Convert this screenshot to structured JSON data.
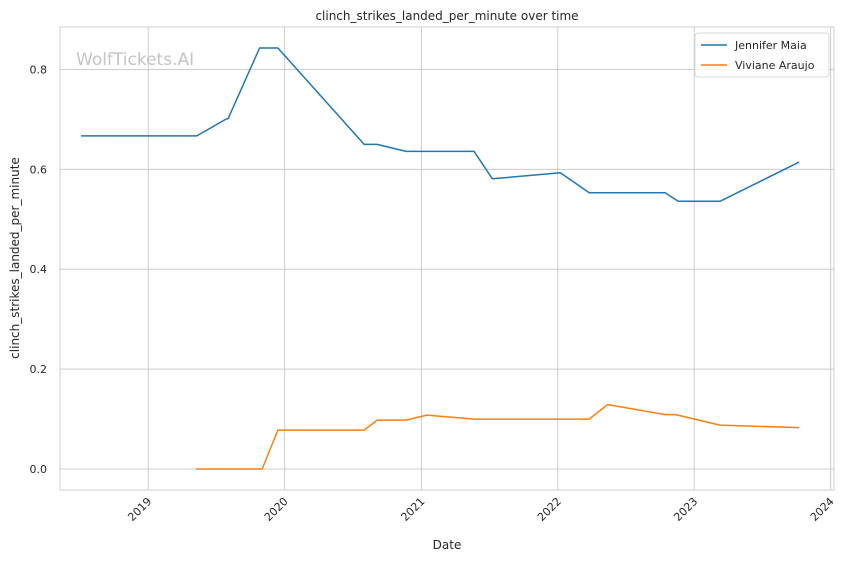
{
  "chart_data": {
    "type": "line",
    "title": "clinch_strikes_landed_per_minute over time",
    "xlabel": "Date",
    "ylabel": "clinch_strikes_landed_per_minute",
    "watermark": "WolfTickets.AI",
    "xlim": [
      "2018-05-10",
      "2024-01-10"
    ],
    "ylim": [
      -0.042,
      0.885
    ],
    "x_ticks": [
      {
        "label": "2019",
        "date": "2019-01-01"
      },
      {
        "label": "2020",
        "date": "2020-01-01"
      },
      {
        "label": "2021",
        "date": "2021-01-01"
      },
      {
        "label": "2022",
        "date": "2022-01-01"
      },
      {
        "label": "2023",
        "date": "2023-01-01"
      },
      {
        "label": "2024",
        "date": "2024-01-01"
      }
    ],
    "y_ticks": [
      {
        "label": "0.0",
        "value": 0.0
      },
      {
        "label": "0.2",
        "value": 0.2
      },
      {
        "label": "0.4",
        "value": 0.4
      },
      {
        "label": "0.6",
        "value": 0.6
      },
      {
        "label": "0.8",
        "value": 0.8
      }
    ],
    "grid": true,
    "legend_position": "top-right",
    "series": [
      {
        "name": "Jennifer Maia",
        "color": "#1f77b4",
        "points": [
          {
            "x": "2018-07-07",
            "y": 0.667
          },
          {
            "x": "2019-05-11",
            "y": 0.667
          },
          {
            "x": "2019-07-27",
            "y": 0.7
          },
          {
            "x": "2019-08-03",
            "y": 0.702
          },
          {
            "x": "2019-10-26",
            "y": 0.843
          },
          {
            "x": "2019-12-14",
            "y": 0.843
          },
          {
            "x": "2020-08-01",
            "y": 0.65
          },
          {
            "x": "2020-09-05",
            "y": 0.65
          },
          {
            "x": "2020-11-21",
            "y": 0.636
          },
          {
            "x": "2021-05-22",
            "y": 0.636
          },
          {
            "x": "2021-07-10",
            "y": 0.581
          },
          {
            "x": "2022-01-08",
            "y": 0.593
          },
          {
            "x": "2022-03-26",
            "y": 0.553
          },
          {
            "x": "2022-10-15",
            "y": 0.553
          },
          {
            "x": "2022-11-19",
            "y": 0.536
          },
          {
            "x": "2023-03-11",
            "y": 0.536
          },
          {
            "x": "2023-10-07",
            "y": 0.614
          }
        ]
      },
      {
        "name": "Viviane Araujo",
        "color": "#ff7f0e",
        "points": [
          {
            "x": "2019-05-11",
            "y": 0.0
          },
          {
            "x": "2019-11-02",
            "y": 0.0
          },
          {
            "x": "2019-12-14",
            "y": 0.078
          },
          {
            "x": "2020-08-01",
            "y": 0.078
          },
          {
            "x": "2020-09-05",
            "y": 0.098
          },
          {
            "x": "2020-11-21",
            "y": 0.098
          },
          {
            "x": "2021-01-16",
            "y": 0.108
          },
          {
            "x": "2021-05-22",
            "y": 0.1
          },
          {
            "x": "2022-03-26",
            "y": 0.1
          },
          {
            "x": "2022-05-14",
            "y": 0.129
          },
          {
            "x": "2022-10-15",
            "y": 0.109
          },
          {
            "x": "2022-11-12",
            "y": 0.109
          },
          {
            "x": "2023-03-11",
            "y": 0.088
          },
          {
            "x": "2023-10-07",
            "y": 0.083
          }
        ]
      }
    ]
  }
}
